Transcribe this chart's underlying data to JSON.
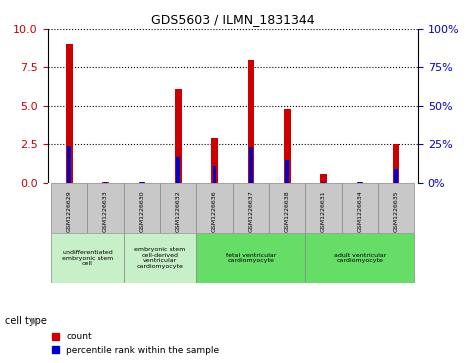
{
  "title": "GDS5603 / ILMN_1831344",
  "samples": [
    "GSM1226629",
    "GSM1226633",
    "GSM1226630",
    "GSM1226632",
    "GSM1226636",
    "GSM1226637",
    "GSM1226638",
    "GSM1226631",
    "GSM1226634",
    "GSM1226635"
  ],
  "count_values": [
    9.0,
    0.05,
    0.05,
    6.1,
    2.9,
    8.0,
    4.8,
    0.55,
    0.05,
    2.5
  ],
  "percentile_values": [
    24,
    0.5,
    0.5,
    17,
    11,
    23.5,
    14.5,
    0.7,
    0.5,
    9.0
  ],
  "ylim_left": [
    0,
    10
  ],
  "ylim_right": [
    0,
    100
  ],
  "yticks_left": [
    0,
    2.5,
    5,
    7.5,
    10
  ],
  "yticks_right": [
    0,
    25,
    50,
    75,
    100
  ],
  "count_color": "#cc0000",
  "percentile_color": "#0000cc",
  "bar_width": 0.18,
  "plot_bg_color": "#ffffff",
  "sample_box_color": "#c8c8c8",
  "legend_count_label": "count",
  "legend_percentile_label": "percentile rank within the sample",
  "cell_type_label": "cell type",
  "cell_groups": [
    {
      "label": "undifferentiated\nembryonic stem\ncell",
      "start": 0,
      "end": 1,
      "color": "#c8f0c8"
    },
    {
      "label": "embryonic stem\ncell-derived\nventricular\ncardiomyocyte",
      "start": 2,
      "end": 3,
      "color": "#c8f0c8"
    },
    {
      "label": "fetal ventricular\ncardiomyocyte",
      "start": 4,
      "end": 6,
      "color": "#66dd66"
    },
    {
      "label": "adult ventricular\ncardiomyocyte",
      "start": 7,
      "end": 9,
      "color": "#66dd66"
    }
  ]
}
